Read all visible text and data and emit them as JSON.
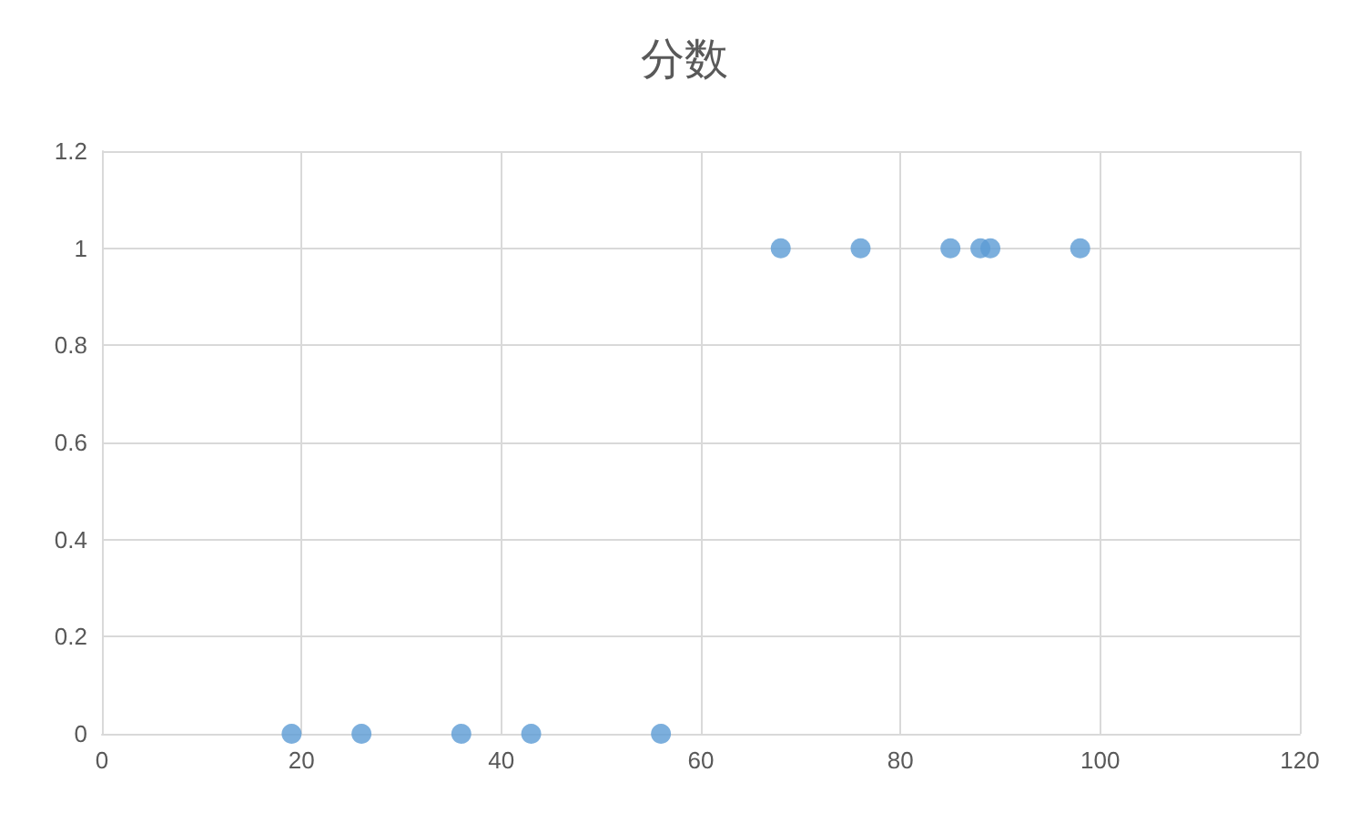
{
  "chart_data": {
    "type": "scatter",
    "title": "分数",
    "x": [
      19,
      26,
      36,
      43,
      56,
      68,
      76,
      85,
      88,
      89,
      98
    ],
    "values": [
      0,
      0,
      0,
      0,
      0,
      1,
      1,
      1,
      1,
      1,
      1
    ],
    "color": "#5b9bd5",
    "marker": "circle",
    "xlim": [
      0,
      120
    ],
    "xticks": [
      0,
      20,
      40,
      60,
      80,
      100,
      120
    ],
    "ylim": [
      0,
      1.2
    ],
    "yticks": [
      0,
      0.2,
      0.4,
      0.6,
      0.8,
      1,
      1.2
    ],
    "grid": true
  }
}
